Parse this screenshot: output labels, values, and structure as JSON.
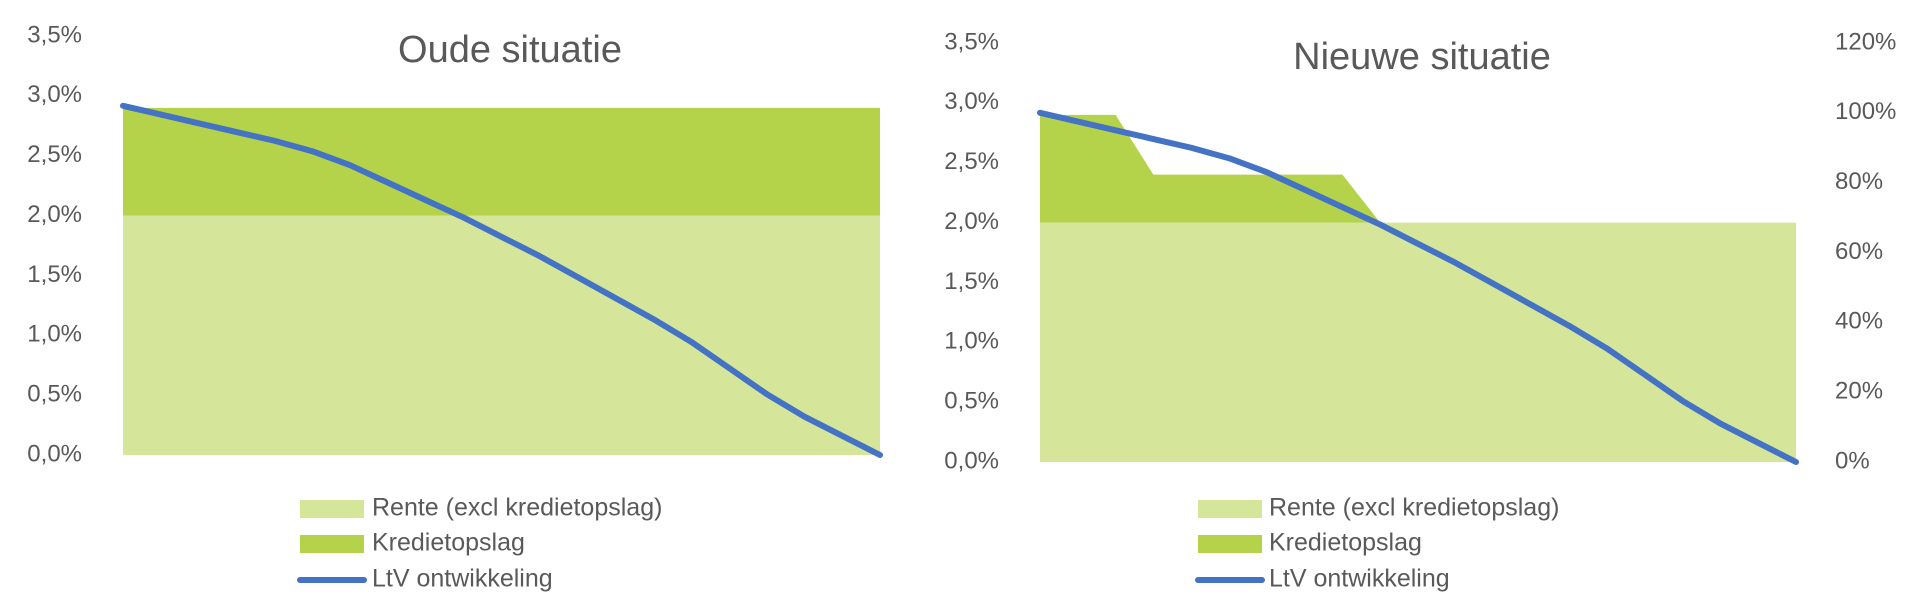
{
  "chart_data": [
    {
      "type": "area",
      "title": "Oude situatie",
      "categories": [
        null,
        null,
        null,
        null,
        null,
        null,
        null,
        null,
        null,
        null,
        null,
        null,
        null,
        null,
        null,
        null,
        null,
        null,
        null,
        null,
        null
      ],
      "ylim": [
        0,
        3.5
      ],
      "yticks": [
        {
          "value": 0,
          "label": "0,0%"
        },
        {
          "value": 0.5,
          "label": "0,5%"
        },
        {
          "value": 1,
          "label": "1,0%"
        },
        {
          "value": 1.5,
          "label": "1,5%"
        },
        {
          "value": 2,
          "label": "2,0%"
        },
        {
          "value": 2.5,
          "label": "2,5%"
        },
        {
          "value": 3,
          "label": "3,0%"
        },
        {
          "value": 3.5,
          "label": "3,5%"
        }
      ],
      "y2lim": [
        0,
        120
      ],
      "series": [
        {
          "name": "Rente (excl kredietopslag)",
          "color": "#d5e69a",
          "values": [
            2,
            2,
            2,
            2,
            2,
            2,
            2,
            2,
            2,
            2,
            2,
            2,
            2,
            2,
            2,
            2,
            2,
            2,
            2,
            2,
            2
          ]
        },
        {
          "name": "Kredietopslag",
          "color": "#b5d24b",
          "values": [
            0.9,
            0.9,
            0.9,
            0.9,
            0.9,
            0.9,
            0.9,
            0.9,
            0.9,
            0.9,
            0.9,
            0.9,
            0.9,
            0.9,
            0.9,
            0.9,
            0.9,
            0.9,
            0.9,
            0.9,
            0.9
          ]
        },
        {
          "name": "LtV ontwikkeling",
          "color": "#4472c4",
          "type": "line",
          "axis": "y2",
          "values": [
            100,
            97.5,
            95,
            92.5,
            90,
            87,
            83,
            78,
            73,
            68,
            62.5,
            57,
            51,
            45,
            39,
            32.5,
            25,
            17.5,
            11,
            5.5,
            0
          ]
        }
      ]
    },
    {
      "type": "area",
      "title": "Nieuwe situatie",
      "categories": [
        null,
        null,
        null,
        null,
        null,
        null,
        null,
        null,
        null,
        null,
        null,
        null,
        null,
        null,
        null,
        null,
        null,
        null,
        null,
        null,
        null
      ],
      "ylim": [
        0,
        3.5
      ],
      "yticks": [
        {
          "value": 0,
          "label": "0,0%"
        },
        {
          "value": 0.5,
          "label": "0,5%"
        },
        {
          "value": 1,
          "label": "1,0%"
        },
        {
          "value": 1.5,
          "label": "1,5%"
        },
        {
          "value": 2,
          "label": "2,0%"
        },
        {
          "value": 2.5,
          "label": "2,5%"
        },
        {
          "value": 3,
          "label": "3,0%"
        },
        {
          "value": 3.5,
          "label": "3,5%"
        }
      ],
      "y2lim": [
        0,
        120
      ],
      "y2ticks": [
        {
          "value": 0,
          "label": "0%"
        },
        {
          "value": 20,
          "label": "20%"
        },
        {
          "value": 40,
          "label": "40%"
        },
        {
          "value": 60,
          "label": "60%"
        },
        {
          "value": 80,
          "label": "80%"
        },
        {
          "value": 100,
          "label": "100%"
        },
        {
          "value": 120,
          "label": "120%"
        }
      ],
      "series": [
        {
          "name": "Rente (excl kredietopslag)",
          "color": "#d5e69a",
          "values": [
            2,
            2,
            2,
            2,
            2,
            2,
            2,
            2,
            2,
            2,
            2,
            2,
            2,
            2,
            2,
            2,
            2,
            2,
            2,
            2,
            2
          ]
        },
        {
          "name": "Kredietopslag",
          "color": "#b5d24b",
          "values": [
            0.9,
            0.9,
            0.9,
            0.4,
            0.4,
            0.4,
            0.4,
            0.4,
            0.4,
            0,
            0,
            0,
            0,
            0,
            0,
            0,
            0,
            0,
            0,
            0,
            0
          ]
        },
        {
          "name": "LtV ontwikkeling",
          "color": "#4472c4",
          "type": "line",
          "axis": "y2",
          "values": [
            100,
            97.5,
            95,
            92.5,
            90,
            87,
            83,
            78,
            73,
            68,
            62.5,
            57,
            51,
            45,
            39,
            32.5,
            25,
            17.5,
            11,
            5.5,
            0
          ]
        }
      ]
    }
  ]
}
